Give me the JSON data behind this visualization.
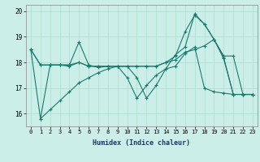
{
  "title": "",
  "xlabel": "Humidex (Indice chaleur)",
  "xlim": [
    -0.5,
    23.5
  ],
  "ylim": [
    15.5,
    20.25
  ],
  "yticks": [
    16,
    17,
    18,
    19,
    20
  ],
  "xticks": [
    0,
    1,
    2,
    3,
    4,
    5,
    6,
    7,
    8,
    9,
    10,
    11,
    12,
    13,
    14,
    15,
    16,
    17,
    18,
    19,
    20,
    21,
    22,
    23
  ],
  "background_color": "#cceee8",
  "grid_color": "#aaddcc",
  "line_color": "#1a7a6e",
  "lines": [
    {
      "x": [
        0,
        1,
        2,
        3,
        4,
        5,
        6,
        7,
        8,
        9,
        10,
        11,
        12,
        13,
        14,
        15,
        16,
        17,
        18,
        19,
        20,
        21,
        22,
        23
      ],
      "y": [
        18.5,
        15.8,
        17.9,
        17.9,
        17.9,
        18.8,
        17.9,
        17.8,
        17.85,
        17.85,
        17.4,
        16.6,
        17.1,
        17.5,
        17.75,
        18.3,
        18.6,
        19.9,
        19.5,
        18.9,
        18.15,
        16.75,
        16.75,
        16.75
      ]
    },
    {
      "x": [
        0,
        1,
        2,
        3,
        4,
        5,
        6,
        7,
        8,
        9,
        10,
        11,
        12,
        13,
        14,
        15,
        16,
        17,
        18,
        19,
        20,
        21,
        22,
        23
      ],
      "y": [
        18.5,
        17.9,
        17.9,
        17.9,
        17.9,
        18.0,
        17.85,
        17.85,
        17.85,
        17.85,
        17.85,
        17.85,
        17.85,
        17.85,
        18.0,
        18.1,
        18.4,
        18.5,
        18.65,
        18.9,
        18.25,
        18.25,
        16.75,
        16.75
      ]
    },
    {
      "x": [
        1,
        2,
        3,
        4,
        5,
        6,
        7,
        8,
        9,
        10,
        11,
        12,
        13,
        14,
        15,
        16,
        17,
        18,
        19,
        20,
        21,
        22,
        23
      ],
      "y": [
        15.8,
        16.15,
        16.5,
        16.85,
        17.2,
        17.4,
        17.6,
        17.75,
        17.85,
        17.85,
        17.4,
        16.6,
        17.1,
        17.75,
        17.85,
        18.35,
        18.6,
        17.0,
        16.85,
        16.8,
        16.75,
        16.75,
        16.75
      ]
    },
    {
      "x": [
        0,
        1,
        2,
        3,
        4,
        5,
        6,
        7,
        8,
        9,
        10,
        11,
        12,
        13,
        14,
        15,
        16,
        17,
        18,
        19,
        20,
        21,
        22,
        23
      ],
      "y": [
        18.5,
        17.9,
        17.9,
        17.9,
        17.85,
        18.0,
        17.85,
        17.85,
        17.85,
        17.85,
        17.85,
        17.85,
        17.85,
        17.85,
        18.0,
        18.25,
        19.2,
        19.85,
        19.5,
        18.9,
        18.2,
        16.75,
        16.75,
        16.75
      ]
    }
  ]
}
